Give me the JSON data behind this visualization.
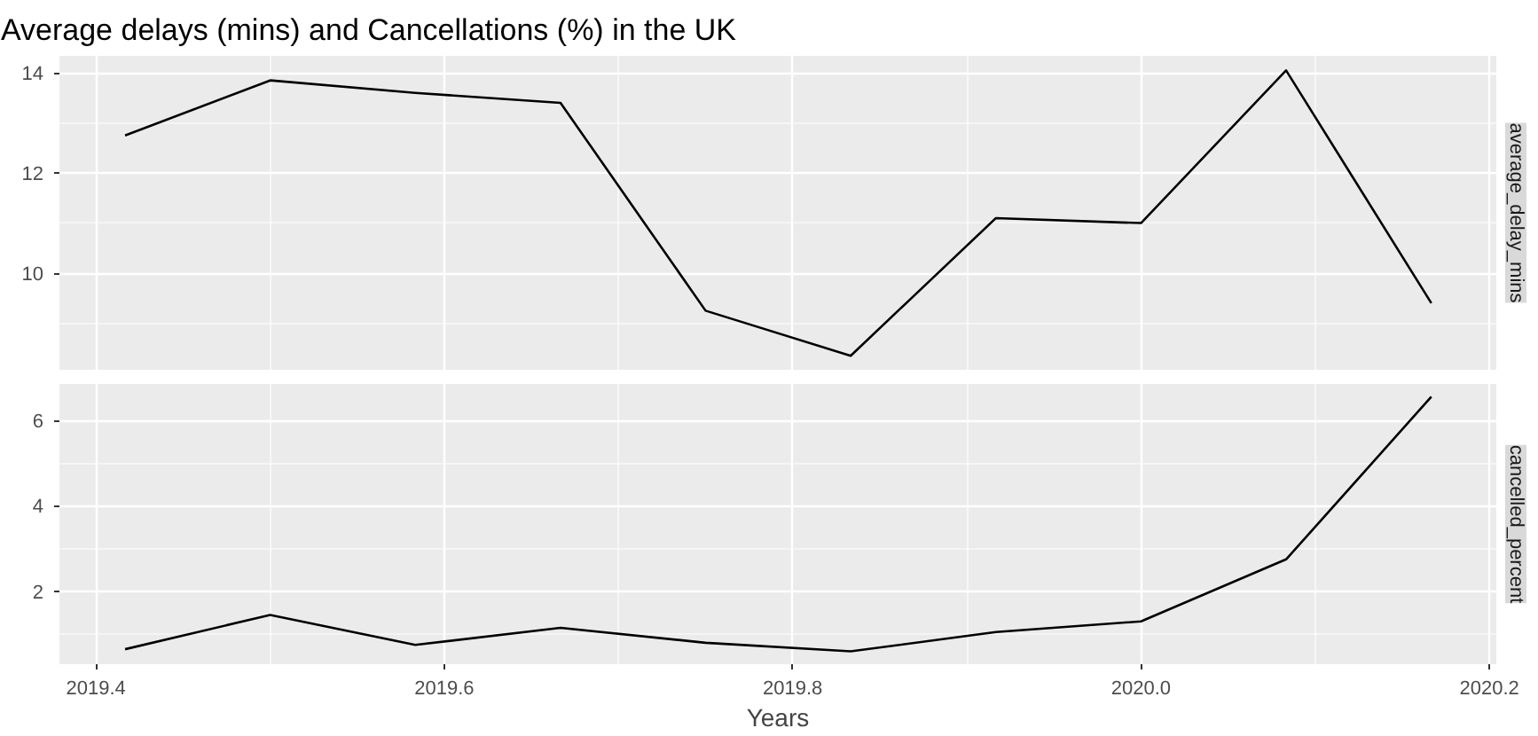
{
  "chart_data": [
    {
      "type": "line",
      "title": "Average delays (mins) and Cancellations (%) in the UK",
      "x": [
        2019.4167,
        2019.5,
        2019.5833,
        2019.6667,
        2019.75,
        2019.8333,
        2019.9167,
        2020.0,
        2020.0833,
        2020.1667
      ],
      "series": [
        {
          "name": "average_delay_mins",
          "color": "#000000",
          "values": [
            12.75,
            13.85,
            13.6,
            13.4,
            9.25,
            8.35,
            11.1,
            11.0,
            14.05,
            9.4
          ]
        }
      ],
      "xlim": [
        2019.379,
        2020.204
      ],
      "ylim": [
        8.07,
        14.34
      ],
      "xticks": [
        {
          "value": 2019.4,
          "label": null
        },
        {
          "value": 2019.6,
          "label": null
        },
        {
          "value": 2019.8,
          "label": null
        },
        {
          "value": 2020.0,
          "label": null
        },
        {
          "value": 2020.2,
          "label": null
        }
      ],
      "yticks": [
        10,
        12,
        14
      ],
      "grid": true,
      "tick_labels": "y"
    },
    {
      "type": "line",
      "xlabel": "Years",
      "x": [
        2019.4167,
        2019.5,
        2019.5833,
        2019.6667,
        2019.75,
        2019.8333,
        2019.9167,
        2020.0,
        2020.0833,
        2020.1667
      ],
      "series": [
        {
          "name": "cancelled_percent",
          "color": "#000000",
          "values": [
            0.65,
            1.45,
            0.75,
            1.15,
            0.8,
            0.6,
            1.05,
            1.3,
            2.75,
            6.55
          ]
        }
      ],
      "xlim": [
        2019.379,
        2020.204
      ],
      "ylim": [
        0.3,
        6.85
      ],
      "xticks": [
        2019.4,
        2019.6,
        2019.8,
        {
          "value": 2020.0,
          "label": "2020.0"
        },
        2020.2
      ],
      "yticks": [
        2,
        4,
        6
      ],
      "grid": true
    }
  ]
}
